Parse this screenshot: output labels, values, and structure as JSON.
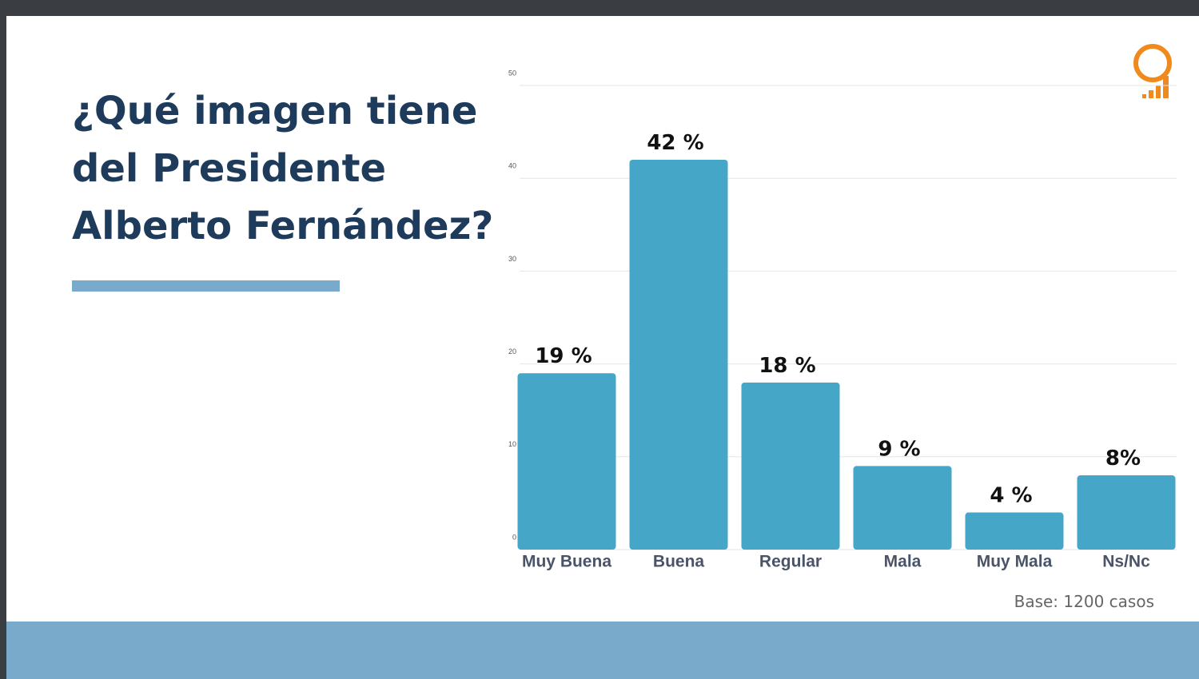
{
  "chart_data": {
    "type": "bar",
    "title": [
      "¿Qué imagen tiene",
      "del Presidente",
      "Alberto Fernández?"
    ],
    "categories": [
      "Muy Buena",
      "Buena",
      "Regular",
      "Mala",
      "Muy Mala",
      "Ns/Nc"
    ],
    "values": [
      19,
      42,
      18,
      9,
      4,
      8
    ],
    "value_labels": [
      "19 %",
      "42 %",
      "18 %",
      "9 %",
      "4 %",
      "8%"
    ],
    "color": "#46a6c8",
    "ylim": [
      0,
      50
    ],
    "yticks": [
      0,
      10,
      20,
      30,
      40,
      50
    ],
    "grid": true,
    "note": "Base:  1200 casos"
  }
}
